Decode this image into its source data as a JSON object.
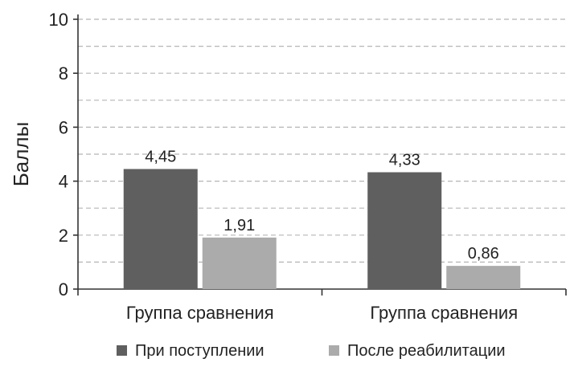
{
  "chart_data": {
    "type": "bar",
    "categories": [
      "Группа сравнения",
      "Группа сравнения"
    ],
    "series": [
      {
        "name": "При поступлении",
        "values": [
          4.45,
          4.33
        ],
        "labels": [
          "4,45",
          "4,33"
        ],
        "color": "#5f5f5f"
      },
      {
        "name": "После реабилитации",
        "values": [
          1.91,
          0.86
        ],
        "labels": [
          "1,91",
          "0,86"
        ],
        "color": "#ababab"
      }
    ],
    "ylabel": "Баллы",
    "ylim": [
      0,
      10
    ],
    "yticks": [
      0,
      2,
      4,
      6,
      8,
      10
    ],
    "grid": "dashed",
    "legend_position": "bottom"
  }
}
